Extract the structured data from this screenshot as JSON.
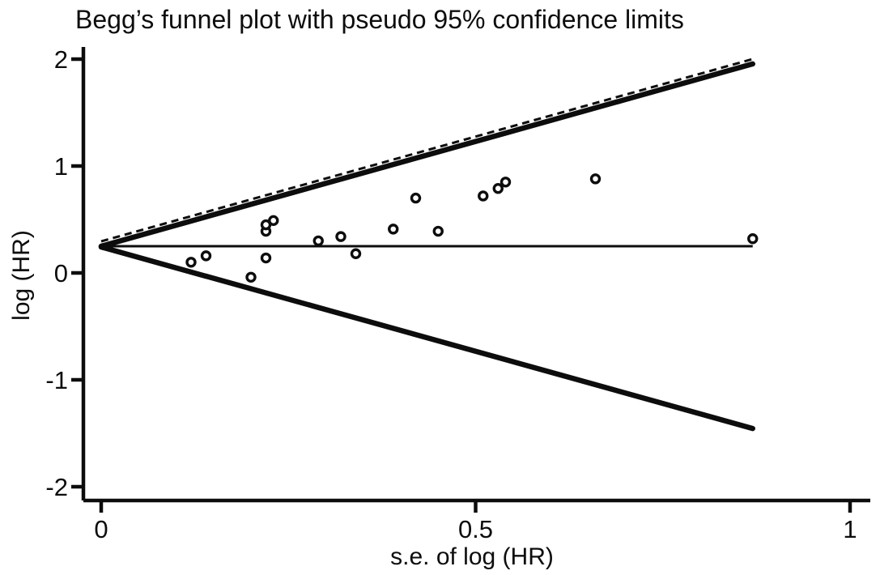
{
  "figure": {
    "title": "Begg’s funnel plot with pseudo 95% confidence limits",
    "x_axis_label": "s.e. of log (HR)",
    "y_axis_label": "log (HR)"
  },
  "colors": {
    "ink": "#0d0d0d",
    "background": "#ffffff"
  },
  "chart_data": {
    "type": "scatter",
    "title": "Begg’s funnel plot with pseudo 95% confidence limits",
    "xlabel": "s.e. of log (HR)",
    "ylabel": "log (HR)",
    "xlim": [
      0,
      1.03
    ],
    "ylim": [
      -2.15,
      2.12
    ],
    "x_ticks": [
      0,
      0.5,
      1
    ],
    "x_tick_labels": [
      "0",
      "0.5",
      "1"
    ],
    "y_ticks": [
      -2,
      -1,
      0,
      1,
      2
    ],
    "y_tick_labels": [
      "-2",
      "-1",
      "0",
      "1",
      "2"
    ],
    "grid": false,
    "legend": false,
    "marker": "open-circle",
    "pooled_log_hr": 0.25,
    "z_value": 1.96,
    "funnel_se_max": 0.87,
    "pooled_line_se_extent": 0.87,
    "upper_limit_has_dashed_overlay": true,
    "points_se_loghr": [
      [
        0.12,
        0.1
      ],
      [
        0.14,
        0.16
      ],
      [
        0.2,
        -0.04
      ],
      [
        0.22,
        0.14
      ],
      [
        0.22,
        0.39
      ],
      [
        0.22,
        0.45
      ],
      [
        0.23,
        0.49
      ],
      [
        0.29,
        0.3
      ],
      [
        0.32,
        0.34
      ],
      [
        0.34,
        0.18
      ],
      [
        0.39,
        0.41
      ],
      [
        0.42,
        0.7
      ],
      [
        0.45,
        0.39
      ],
      [
        0.51,
        0.72
      ],
      [
        0.53,
        0.79
      ],
      [
        0.54,
        0.85
      ],
      [
        0.66,
        0.88
      ],
      [
        0.87,
        0.32
      ]
    ]
  }
}
